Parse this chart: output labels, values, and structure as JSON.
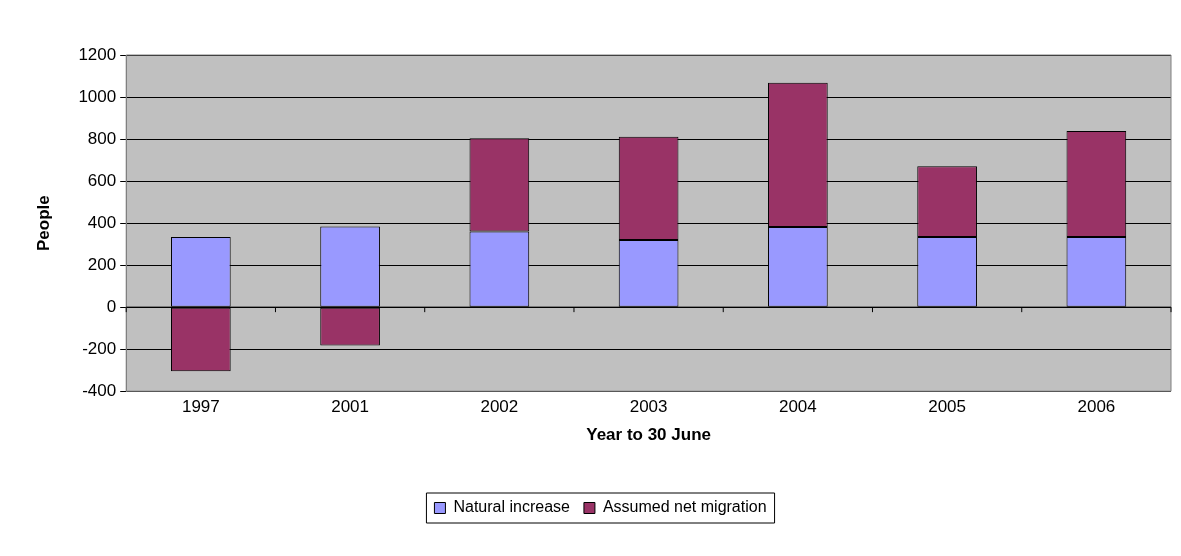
{
  "chart_data": {
    "type": "bar",
    "stacked": true,
    "xlabel": "Year to 30 June",
    "ylabel": "People",
    "categories": [
      "1997",
      "2001",
      "2002",
      "2003",
      "2004",
      "2005",
      "2006"
    ],
    "series": [
      {
        "name": "Natural increase",
        "color": "#9999ff",
        "values": [
          334,
          384,
          360,
          319,
          382,
          334,
          334
        ]
      },
      {
        "name": "Assumed net migration",
        "color": "#993366",
        "values": [
          -305,
          -183,
          444,
          492,
          686,
          337,
          504
        ]
      }
    ],
    "ylim": [
      -400,
      1200
    ],
    "yticks": [
      -400,
      -200,
      0,
      200,
      400,
      600,
      800,
      1000,
      1200
    ],
    "grid": "y",
    "legend": "bottom"
  }
}
